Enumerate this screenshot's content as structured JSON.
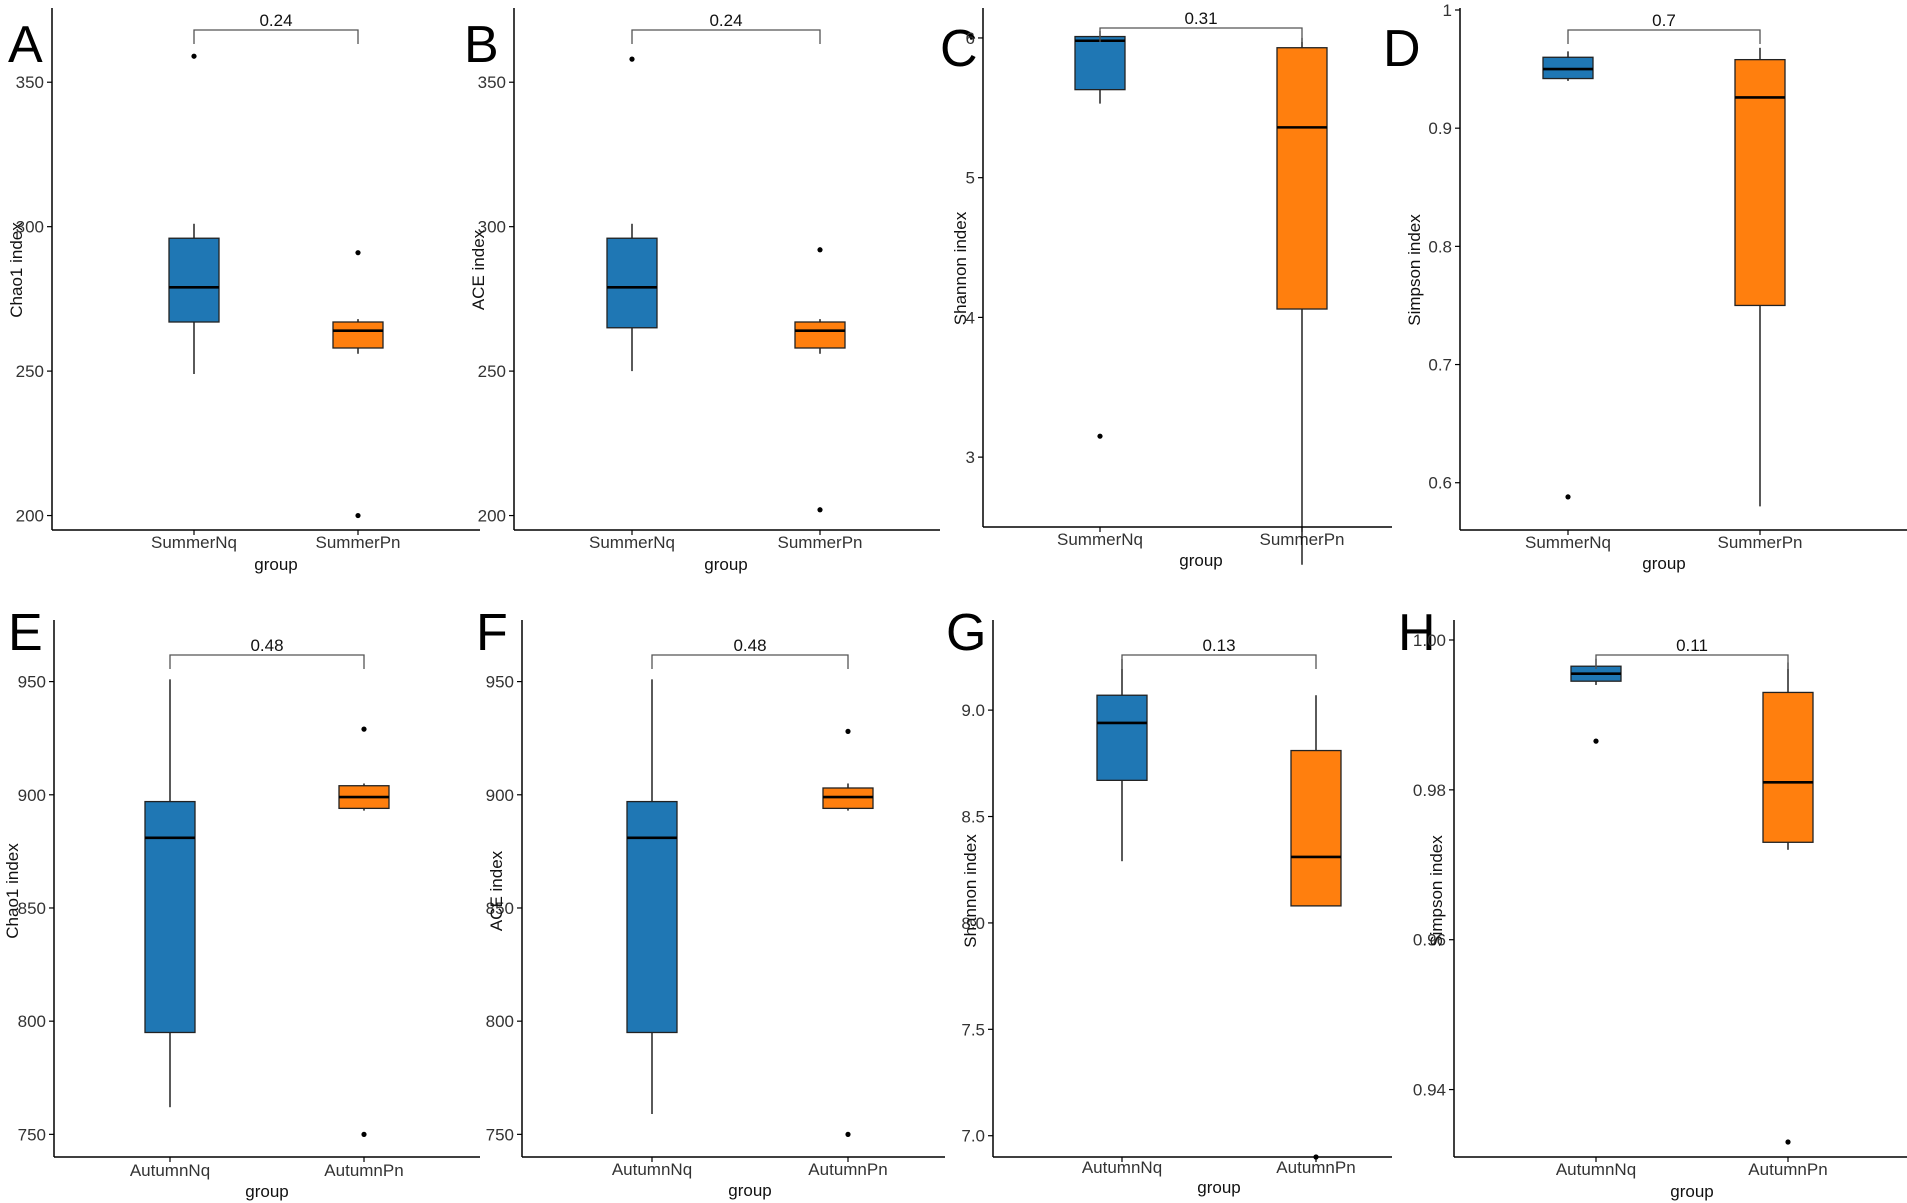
{
  "figure": {
    "colors": {
      "groupA": "#1f77b4",
      "groupB": "#ff7f0e",
      "axis": "#000000",
      "line": "#000000",
      "bracket": "#555555"
    }
  },
  "chart_data": [
    {
      "panel": "A",
      "type": "box",
      "ylabel": "Chao1 index",
      "xlabel": "group",
      "categories": [
        "SummerNq",
        "SummerPn"
      ],
      "ylim": [
        195,
        375
      ],
      "yticks": [
        200,
        250,
        300,
        350
      ],
      "pvalue": "0.24",
      "boxes": [
        {
          "q1": 267,
          "median": 279,
          "q3": 296,
          "whisker_low": 249,
          "whisker_high": 301,
          "outliers": [
            359
          ]
        },
        {
          "q1": 258,
          "median": 264,
          "q3": 267,
          "whisker_low": 256,
          "whisker_high": 268,
          "outliers": [
            291,
            200
          ]
        }
      ]
    },
    {
      "panel": "B",
      "type": "box",
      "ylabel": "ACE index",
      "xlabel": "group",
      "categories": [
        "SummerNq",
        "SummerPn"
      ],
      "ylim": [
        195,
        375
      ],
      "yticks": [
        200,
        250,
        300,
        350
      ],
      "pvalue": "0.24",
      "boxes": [
        {
          "q1": 265,
          "median": 279,
          "q3": 296,
          "whisker_low": 250,
          "whisker_high": 301,
          "outliers": [
            358
          ]
        },
        {
          "q1": 258,
          "median": 264,
          "q3": 267,
          "whisker_low": 256,
          "whisker_high": 268,
          "outliers": [
            292,
            202
          ]
        }
      ]
    },
    {
      "panel": "C",
      "type": "box",
      "ylabel": "Shannon index",
      "xlabel": "group",
      "categories": [
        "SummerNq",
        "SummerPn"
      ],
      "ylim": [
        2.5,
        6.2
      ],
      "yticks": [
        3,
        4,
        5,
        6
      ],
      "pvalue": "0.31",
      "boxes": [
        {
          "q1": 5.63,
          "median": 5.98,
          "q3": 6.01,
          "whisker_low": 5.53,
          "whisker_high": 6.05,
          "outliers": [
            3.15
          ]
        },
        {
          "q1": 4.06,
          "median": 5.36,
          "q3": 5.93,
          "whisker_low": 2.23,
          "whisker_high": 6.0,
          "outliers": []
        }
      ]
    },
    {
      "panel": "D",
      "type": "box",
      "ylabel": "Simpson index",
      "xlabel": "group",
      "categories": [
        "SummerNq",
        "SummerPn"
      ],
      "ylim": [
        0.56,
        1.0
      ],
      "yticks": [
        0.6,
        0.7,
        0.8,
        0.9,
        1.0
      ],
      "pvalue": "0.7",
      "boxes": [
        {
          "q1": 0.942,
          "median": 0.95,
          "q3": 0.96,
          "whisker_low": 0.94,
          "whisker_high": 0.965,
          "outliers": [
            0.588
          ]
        },
        {
          "q1": 0.75,
          "median": 0.926,
          "q3": 0.958,
          "whisker_low": 0.58,
          "whisker_high": 0.968,
          "outliers": []
        }
      ]
    },
    {
      "panel": "E",
      "type": "box",
      "ylabel": "Chao1 index",
      "xlabel": "group",
      "categories": [
        "AutumnNq",
        "AutumnPn"
      ],
      "ylim": [
        740,
        975
      ],
      "yticks": [
        750,
        800,
        850,
        900,
        950
      ],
      "pvalue": "0.48",
      "boxes": [
        {
          "q1": 795,
          "median": 881,
          "q3": 897,
          "whisker_low": 762,
          "whisker_high": 951,
          "outliers": []
        },
        {
          "q1": 894,
          "median": 899,
          "q3": 904,
          "whisker_low": 893,
          "whisker_high": 905,
          "outliers": [
            929,
            750
          ]
        }
      ]
    },
    {
      "panel": "F",
      "type": "box",
      "ylabel": "ACE index",
      "xlabel": "group",
      "categories": [
        "AutumnNq",
        "AutumnPn"
      ],
      "ylim": [
        740,
        975
      ],
      "yticks": [
        750,
        800,
        850,
        900,
        950
      ],
      "pvalue": "0.48",
      "boxes": [
        {
          "q1": 795,
          "median": 881,
          "q3": 897,
          "whisker_low": 759,
          "whisker_high": 951,
          "outliers": []
        },
        {
          "q1": 894,
          "median": 899,
          "q3": 903,
          "whisker_low": 893,
          "whisker_high": 905,
          "outliers": [
            928,
            750
          ]
        }
      ]
    },
    {
      "panel": "G",
      "type": "box",
      "ylabel": "Shannon index",
      "xlabel": "group",
      "categories": [
        "AutumnNq",
        "AutumnPn"
      ],
      "ylim": [
        6.9,
        9.4
      ],
      "yticks": [
        7.0,
        7.5,
        8.0,
        8.5,
        9.0
      ],
      "tick_labels": [
        "7.0",
        "7.5",
        "8.0",
        "8.5",
        "9.0"
      ],
      "pvalue": "0.13",
      "boxes": [
        {
          "q1": 8.67,
          "median": 8.94,
          "q3": 9.07,
          "whisker_low": 8.29,
          "whisker_high": 9.24,
          "outliers": []
        },
        {
          "q1": 8.08,
          "median": 8.31,
          "q3": 8.81,
          "whisker_low": 8.08,
          "whisker_high": 9.07,
          "outliers": [
            6.9
          ]
        }
      ]
    },
    {
      "panel": "H",
      "type": "box",
      "ylabel": "Simpson index",
      "xlabel": "group",
      "categories": [
        "AutumnNq",
        "AutumnPn"
      ],
      "ylim": [
        0.931,
        1.002
      ],
      "yticks": [
        0.94,
        0.96,
        0.98,
        1.0
      ],
      "tick_labels": [
        "0.94",
        "0.96",
        "0.98",
        "1.00"
      ],
      "pvalue": "0.11",
      "boxes": [
        {
          "q1": 0.9945,
          "median": 0.9955,
          "q3": 0.9965,
          "whisker_low": 0.994,
          "whisker_high": 0.9975,
          "outliers": [
            0.9865
          ]
        },
        {
          "q1": 0.973,
          "median": 0.981,
          "q3": 0.993,
          "whisker_low": 0.972,
          "whisker_high": 0.997,
          "outliers": [
            0.933
          ]
        }
      ]
    }
  ]
}
